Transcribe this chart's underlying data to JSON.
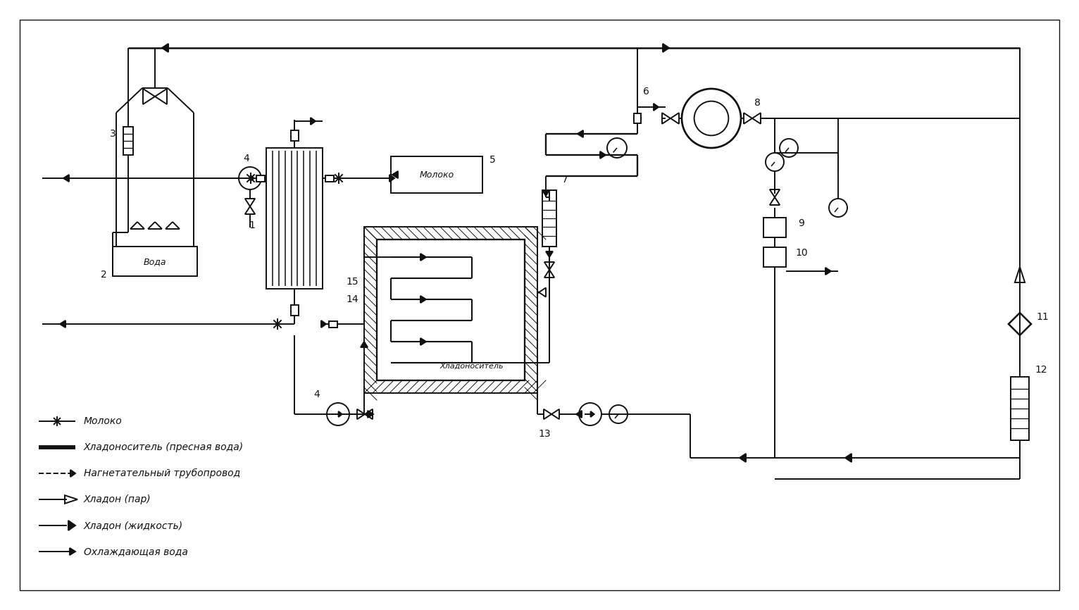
{
  "bg_color": "#ffffff",
  "lc": "#111111",
  "lw": 1.4,
  "fig_w": 15.32,
  "fig_h": 8.66,
  "dpi": 100,
  "legend": [
    {
      "sym": "star_line",
      "label": "Молоко"
    },
    {
      "sym": "thick_line",
      "label": "Хладоноситель (пресная вода)"
    },
    {
      "sym": "dash_arrow",
      "label": "Нагнетательный трубопровод"
    },
    {
      "sym": "open_arrow",
      "label": "Хладон (пар)"
    },
    {
      "sym": "filled_arrow",
      "label": "Хладон (жидкость)"
    },
    {
      "sym": "plain_arrow",
      "label": "Охлаждающая вода"
    }
  ]
}
